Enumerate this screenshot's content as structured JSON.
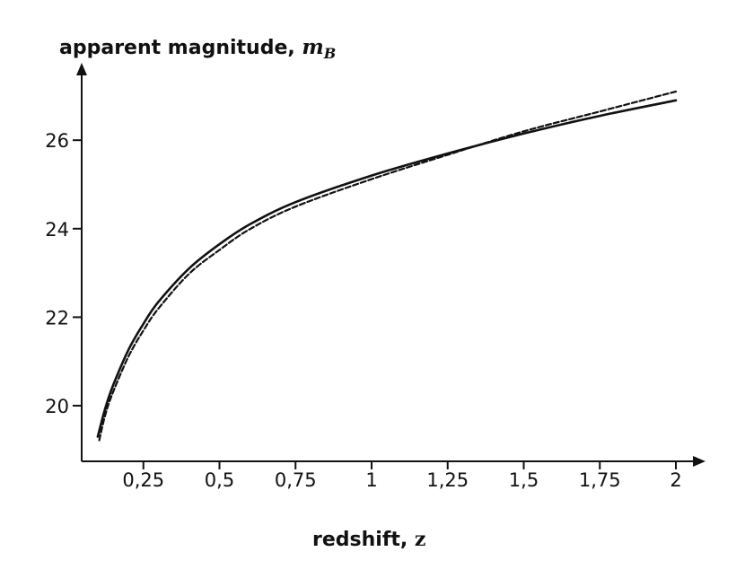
{
  "chart_data": {
    "type": "line",
    "title": "",
    "ylabel": {
      "text": "apparent magnitude, ",
      "symbol": "m",
      "subscript": "B"
    },
    "xlabel": {
      "text": "redshift, ",
      "symbol": "z"
    },
    "xlim": [
      0.0,
      2.1
    ],
    "ylim": [
      18.8,
      28.0
    ],
    "x_ticks": [
      {
        "value": 0.25,
        "label": "0,25"
      },
      {
        "value": 0.5,
        "label": "0,5"
      },
      {
        "value": 0.75,
        "label": "0,75"
      },
      {
        "value": 1,
        "label": "1"
      },
      {
        "value": 1.25,
        "label": "1,25"
      },
      {
        "value": 1.5,
        "label": "1,5"
      },
      {
        "value": 1.75,
        "label": "1,75"
      },
      {
        "value": 2,
        "label": "2"
      }
    ],
    "y_ticks": [
      {
        "value": 20,
        "label": "20"
      },
      {
        "value": 22,
        "label": "22"
      },
      {
        "value": 24,
        "label": "24"
      },
      {
        "value": 26,
        "label": "26"
      }
    ],
    "grid": false,
    "legend": "none",
    "series": [
      {
        "style": "solid",
        "color": "#111111",
        "points": [
          [
            0.1,
            19.3
          ],
          [
            0.125,
            19.95
          ],
          [
            0.15,
            20.45
          ],
          [
            0.2,
            21.25
          ],
          [
            0.25,
            21.85
          ],
          [
            0.3,
            22.35
          ],
          [
            0.4,
            23.1
          ],
          [
            0.5,
            23.65
          ],
          [
            0.6,
            24.1
          ],
          [
            0.75,
            24.6
          ],
          [
            1.0,
            25.2
          ],
          [
            1.25,
            25.7
          ],
          [
            1.5,
            26.15
          ],
          [
            1.75,
            26.55
          ],
          [
            2.0,
            26.9
          ]
        ]
      },
      {
        "style": "dashed",
        "color": "#111111",
        "points": [
          [
            0.105,
            19.22
          ],
          [
            0.125,
            19.8
          ],
          [
            0.15,
            20.3
          ],
          [
            0.2,
            21.1
          ],
          [
            0.25,
            21.7
          ],
          [
            0.3,
            22.2
          ],
          [
            0.4,
            22.98
          ],
          [
            0.5,
            23.52
          ],
          [
            0.6,
            23.99
          ],
          [
            0.75,
            24.5
          ],
          [
            1.0,
            25.12
          ],
          [
            1.25,
            25.67
          ],
          [
            1.5,
            26.2
          ],
          [
            1.75,
            26.65
          ],
          [
            2.0,
            27.1
          ]
        ]
      }
    ]
  }
}
